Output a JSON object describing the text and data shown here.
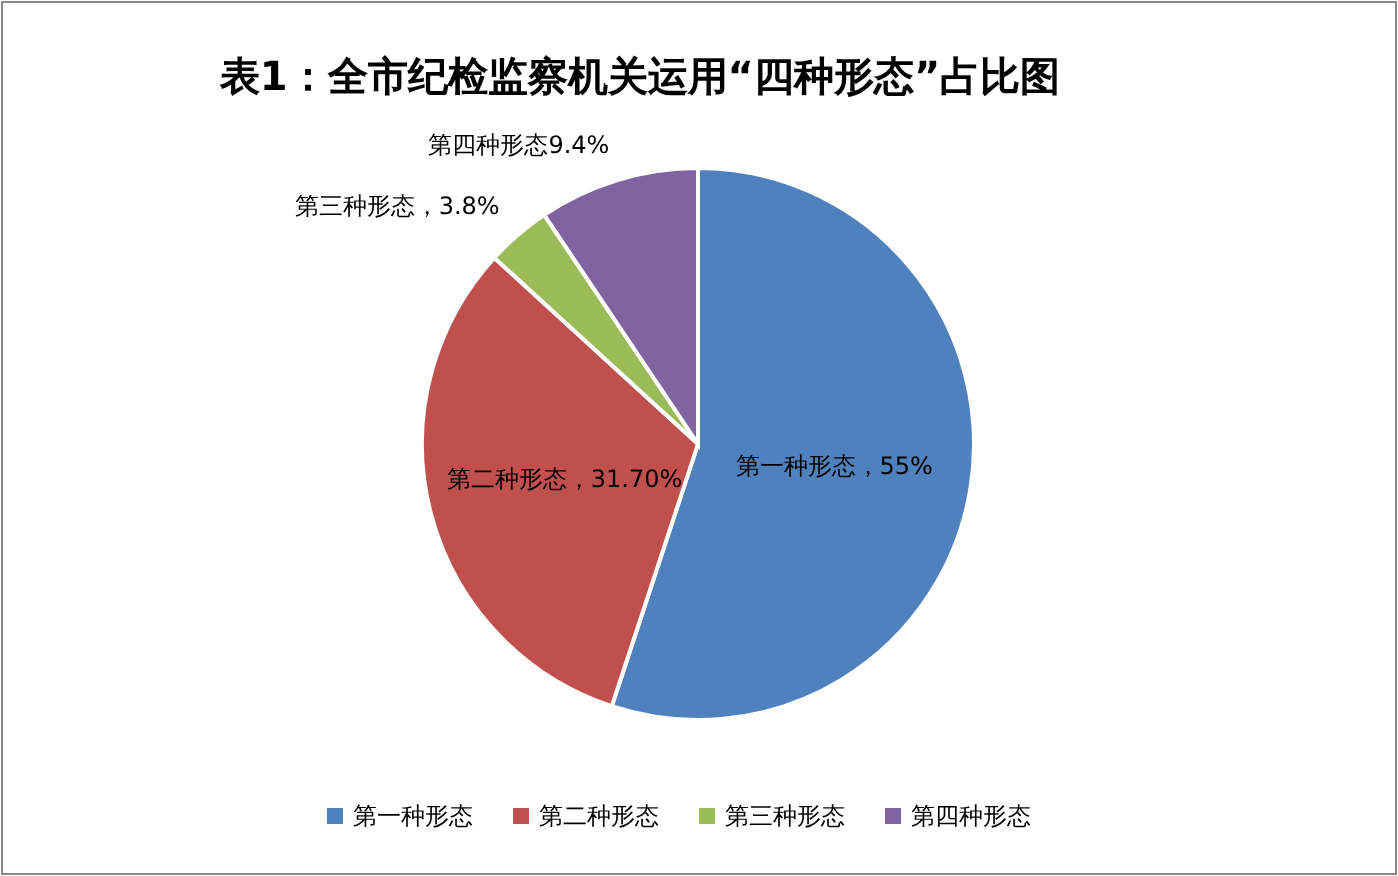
{
  "chart_data": {
    "type": "pie",
    "title": "表1：全市纪检监察机关运用“四种形态”占比图",
    "categories": [
      "第一种形态",
      "第二种形态",
      "第三种形态",
      "第四种形态"
    ],
    "values": [
      55,
      31.7,
      3.8,
      9.4
    ],
    "value_labels": [
      "第一种形态，55%",
      "第二种形态，31.70%",
      "第三种形态，3.8%",
      "第四种形态9.4%"
    ],
    "colors": [
      "#4f81bd",
      "#c0504d",
      "#9bbb59",
      "#8064a2"
    ],
    "legend": "bottom"
  }
}
